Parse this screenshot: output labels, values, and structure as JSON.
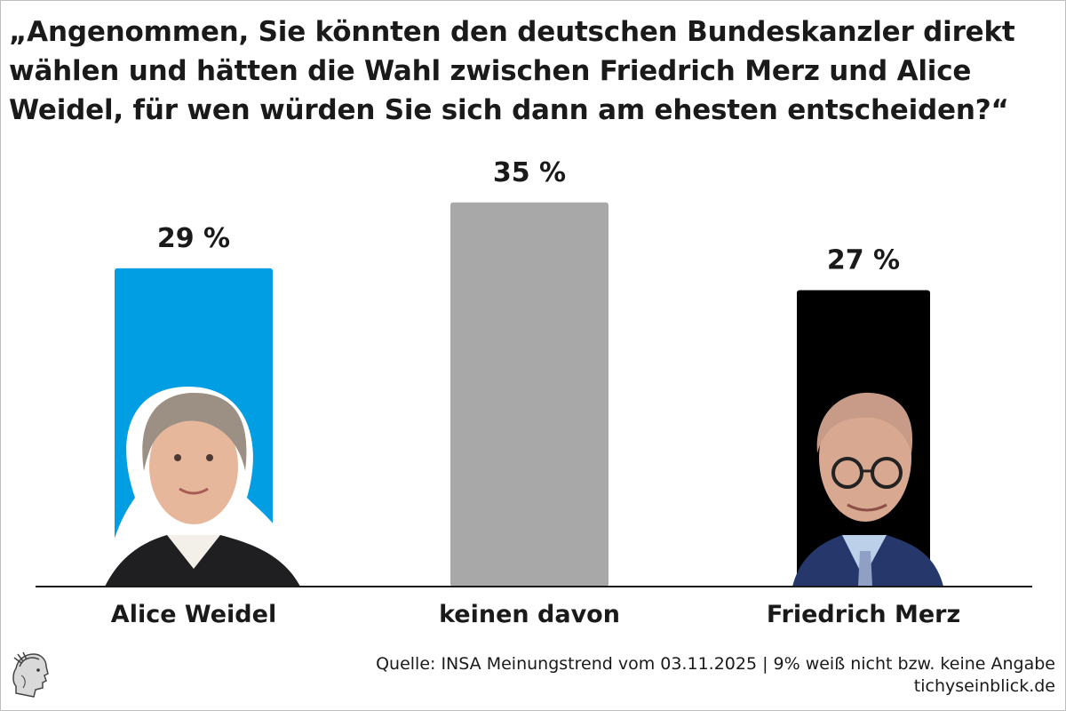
{
  "title": "„Angenommen, Sie könnten den deutschen Bundeskanzler direkt wählen und hätten die Wahl zwischen Friedrich Merz und Alice Weidel, für wen würden Sie sich dann am ehesten entscheiden?“",
  "source": "Quelle: INSA Meinungstrend vom 03.11.2025 | 9% weiß nicht bzw. keine Angabe",
  "site": "tichyseinblick.de",
  "logo_icon": "mercury-head-logo-icon",
  "chart_data": {
    "type": "bar",
    "categories": [
      "Alice Weidel",
      "keinen davon",
      "Friedrich Merz"
    ],
    "values": [
      29,
      35,
      27
    ],
    "value_labels": [
      "29 %",
      "35 %",
      "27 %"
    ],
    "colors": [
      "#019ee3",
      "#a8a8a8",
      "#000000"
    ],
    "bar_images": [
      "portrait-alice-weidel",
      "",
      "portrait-friedrich-merz"
    ],
    "xlabel": "",
    "ylabel": "",
    "ylim": [
      0,
      40
    ],
    "grid": false,
    "legend": "none"
  }
}
